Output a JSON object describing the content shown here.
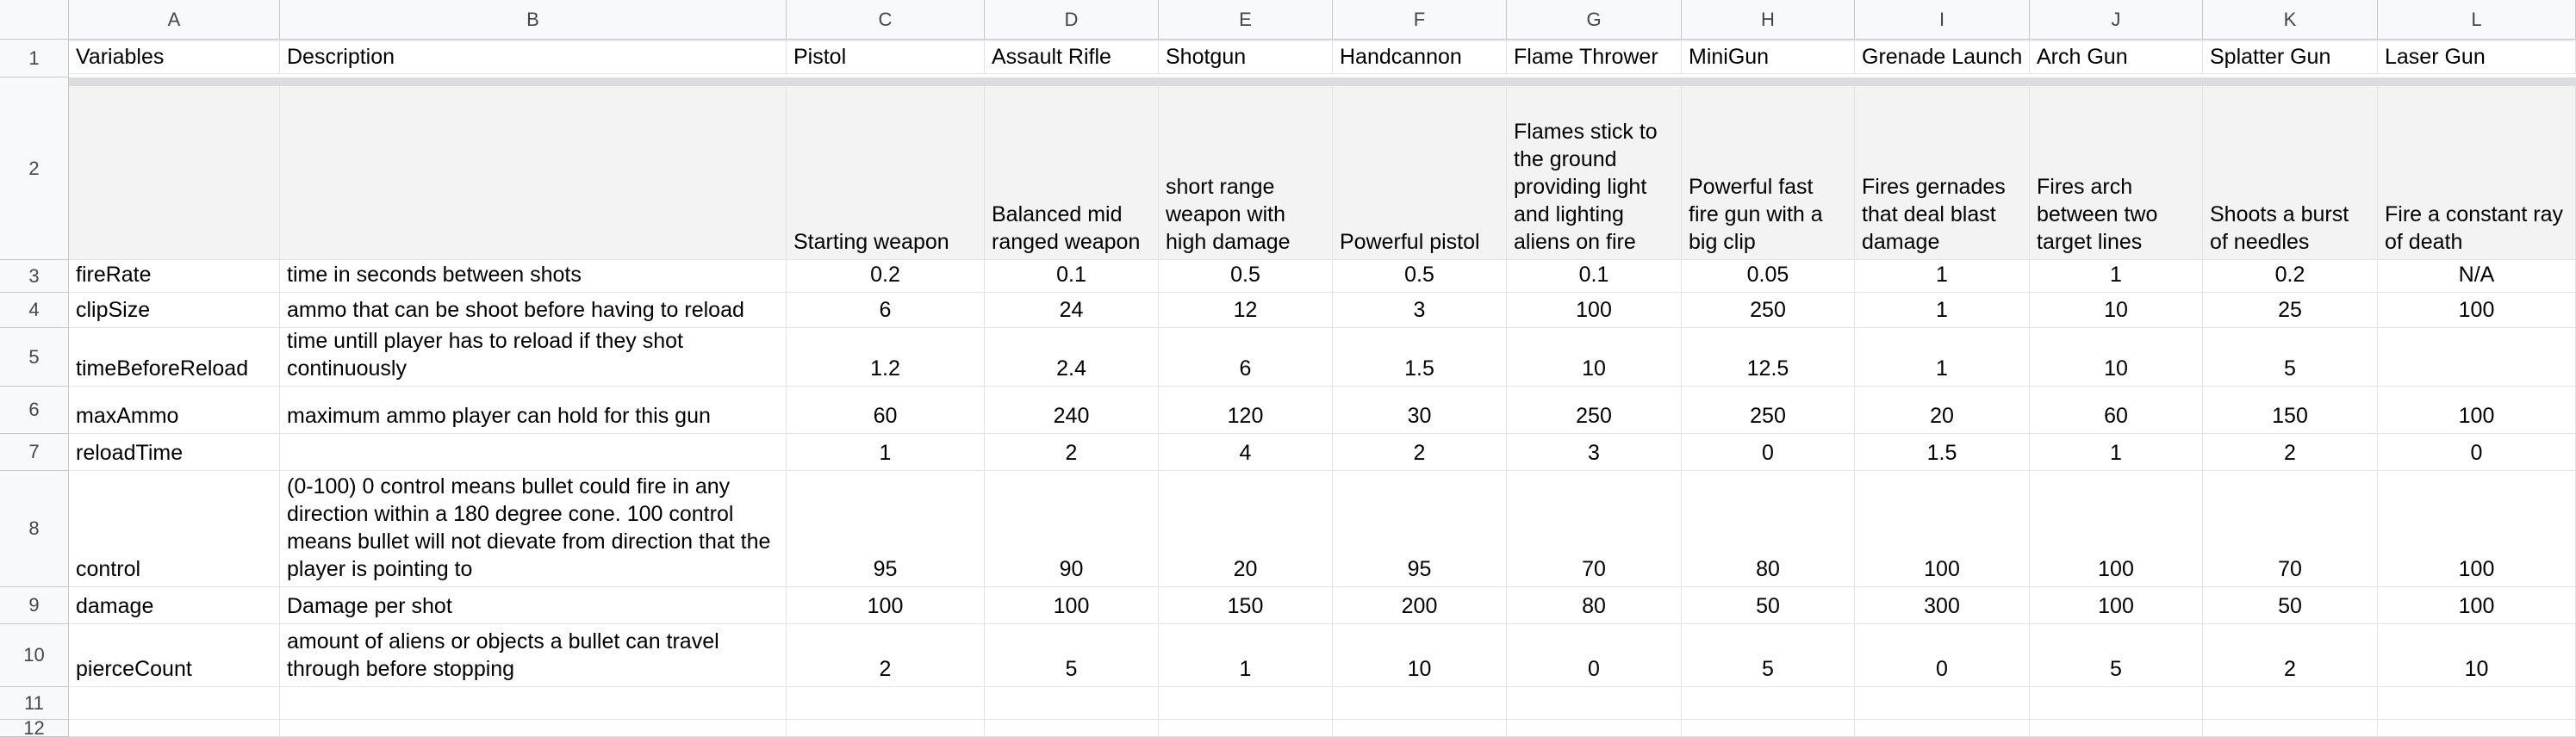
{
  "columns": [
    "A",
    "B",
    "C",
    "D",
    "E",
    "F",
    "G",
    "H",
    "I",
    "J",
    "K",
    "L"
  ],
  "rows": [
    "1",
    "2",
    "3",
    "4",
    "5",
    "6",
    "7",
    "8",
    "9",
    "10",
    "11",
    "12"
  ],
  "header_row": [
    "Variables",
    "Description",
    "Pistol",
    "Assault Rifle",
    "Shotgun",
    "Handcannon",
    "Flame Thrower",
    "MiniGun",
    "Grenade Launch",
    "Arch Gun",
    "Splatter Gun",
    "Laser Gun"
  ],
  "weapon_descriptions": [
    "Starting weapon",
    "Balanced mid ranged weapon",
    "short range weapon with high damage",
    "Powerful pistol",
    "Flames stick to the ground providing light and lighting aliens on fire",
    "Powerful fast fire gun with a big clip",
    "Fires gernades that deal blast damage",
    "Fires arch between two target lines",
    "Shoots a burst of needles",
    "Fire a constant ray of death"
  ],
  "data_rows": [
    {
      "variable": "fireRate",
      "description": "time in seconds between shots",
      "values": [
        "0.2",
        "0.1",
        "0.5",
        "0.5",
        "0.1",
        "0.05",
        "1",
        "1",
        "0.2",
        "N/A"
      ]
    },
    {
      "variable": "clipSize",
      "description": "ammo that can be shoot before having to reload",
      "values": [
        "6",
        "24",
        "12",
        "3",
        "100",
        "250",
        "1",
        "10",
        "25",
        "100"
      ]
    },
    {
      "variable": "timeBeforeReload",
      "description": "time untill player has to reload if they shot continuously",
      "values": [
        "1.2",
        "2.4",
        "6",
        "1.5",
        "10",
        "12.5",
        "1",
        "10",
        "5",
        ""
      ]
    },
    {
      "variable": "maxAmmo",
      "description": "maximum ammo player can hold for this gun",
      "values": [
        "60",
        "240",
        "120",
        "30",
        "250",
        "250",
        "20",
        "60",
        "150",
        "100"
      ]
    },
    {
      "variable": "reloadTime",
      "description": "",
      "values": [
        "1",
        "2",
        "4",
        "2",
        "3",
        "0",
        "1.5",
        "1",
        "2",
        "0"
      ]
    },
    {
      "variable": "control",
      "description": "(0-100) 0 control means bullet could fire in any direction within a 180 degree cone. 100 control means bullet will not dievate from direction that the player is pointing to",
      "values": [
        "95",
        "90",
        "20",
        "95",
        "70",
        "80",
        "100",
        "100",
        "70",
        "100"
      ]
    },
    {
      "variable": "damage",
      "description": "Damage per shot",
      "values": [
        "100",
        "100",
        "150",
        "200",
        "80",
        "50",
        "300",
        "100",
        "50",
        "100"
      ]
    },
    {
      "variable": "pierceCount",
      "description": "amount of aliens or objects a bullet can travel through before stopping",
      "values": [
        "2",
        "5",
        "1",
        "10",
        "0",
        "5",
        "0",
        "5",
        "2",
        "10"
      ]
    }
  ]
}
